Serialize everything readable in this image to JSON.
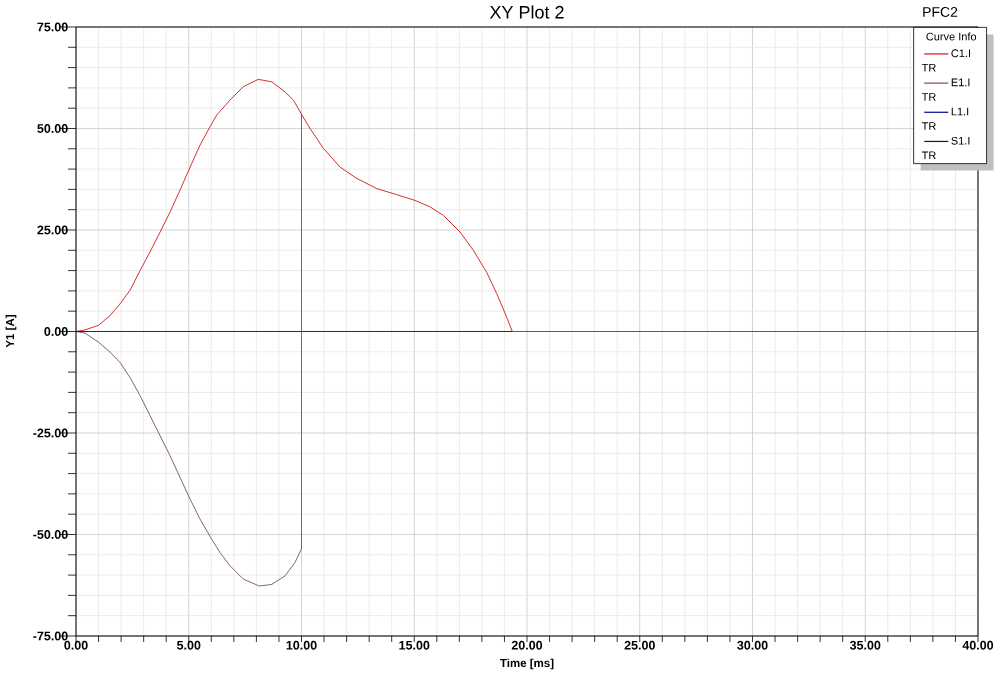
{
  "chart_data": {
    "type": "line",
    "title": "XY Plot 2",
    "xlabel": "Time [ms]",
    "ylabel": "Y1 [A]",
    "legend_title": "Curve Info",
    "annotations": [
      "PFC2",
      "TR",
      "TR",
      "TR",
      "TR"
    ],
    "series": [
      {
        "name": "C1.I",
        "color": "#d01818",
        "x": [
          0,
          0.4,
          0.99,
          1.51,
          1.95,
          2.39,
          2.84,
          3.28,
          3.73,
          4.17,
          4.61,
          5.06,
          5.5,
          5.94,
          6.24,
          6.83,
          7.42,
          8.08,
          8.68,
          9.27,
          9.64,
          10.0,
          10.38,
          10.97,
          11.71,
          12.45,
          13.34,
          14.22,
          15.03,
          15.7,
          16.29,
          17.03,
          17.62,
          18.21,
          18.66,
          19.1,
          19.35,
          40
        ],
        "values": [
          0,
          0.4,
          1.5,
          3.9,
          6.8,
          10.1,
          15.0,
          19.6,
          24.5,
          29.4,
          34.8,
          40.5,
          45.9,
          50.4,
          53.3,
          57.0,
          60.3,
          62.1,
          61.5,
          59.0,
          57.0,
          53.5,
          50.0,
          45.1,
          40.5,
          37.7,
          35.2,
          33.7,
          32.3,
          30.7,
          28.6,
          24.5,
          20.0,
          14.6,
          9.3,
          3.5,
          0,
          0
        ]
      },
      {
        "name": "E1.I",
        "color": "#7a4f66",
        "x": [
          0,
          0.4,
          0.99,
          1.51,
          1.95,
          2.39,
          2.84,
          3.28,
          3.73,
          4.17,
          4.61,
          5.06,
          5.5,
          6.02,
          6.39,
          6.83,
          7.42,
          8.13,
          8.68,
          9.27,
          9.71,
          10.0,
          10.0
        ],
        "values": [
          0,
          -0.4,
          -2.6,
          -5.1,
          -7.6,
          -11.3,
          -15.8,
          -20.7,
          -25.7,
          -30.6,
          -35.9,
          -41.3,
          -46.2,
          -51.2,
          -54.5,
          -57.7,
          -61.0,
          -62.7,
          -62.3,
          -60.2,
          -56.9,
          -53.5,
          53.5
        ]
      },
      {
        "name": "L1.I",
        "color": "#000090"
      },
      {
        "name": "S1.I",
        "color": "#320a32",
        "x": [
          0,
          19.35
        ],
        "values": [
          0,
          0
        ]
      }
    ],
    "xlim": [
      0,
      40
    ],
    "ylim": [
      -75,
      75
    ],
    "xticks": [
      {
        "value": 0,
        "label": "0.00"
      },
      {
        "value": 1,
        "label": null
      },
      {
        "value": 2,
        "label": null
      },
      {
        "value": 3,
        "label": null
      },
      {
        "value": 4,
        "label": null
      },
      {
        "value": 5,
        "label": "5.00"
      },
      {
        "value": 6,
        "label": null
      },
      {
        "value": 7,
        "label": null
      },
      {
        "value": 8,
        "label": null
      },
      {
        "value": 9,
        "label": null
      },
      {
        "value": 10,
        "label": "10.00"
      },
      {
        "value": 11,
        "label": null
      },
      {
        "value": 12,
        "label": null
      },
      {
        "value": 13,
        "label": null
      },
      {
        "value": 14,
        "label": null
      },
      {
        "value": 15,
        "label": "15.00"
      },
      {
        "value": 16,
        "label": null
      },
      {
        "value": 17,
        "label": null
      },
      {
        "value": 18,
        "label": null
      },
      {
        "value": 19,
        "label": null
      },
      {
        "value": 20,
        "label": "20.00"
      },
      {
        "value": 21,
        "label": null
      },
      {
        "value": 22,
        "label": null
      },
      {
        "value": 23,
        "label": null
      },
      {
        "value": 24,
        "label": null
      },
      {
        "value": 25,
        "label": "25.00"
      },
      {
        "value": 26,
        "label": null
      },
      {
        "value": 27,
        "label": null
      },
      {
        "value": 28,
        "label": null
      },
      {
        "value": 29,
        "label": null
      },
      {
        "value": 30,
        "label": "30.00"
      },
      {
        "value": 31,
        "label": null
      },
      {
        "value": 32,
        "label": null
      },
      {
        "value": 33,
        "label": null
      },
      {
        "value": 34,
        "label": null
      },
      {
        "value": 35,
        "label": "35.00"
      },
      {
        "value": 36,
        "label": null
      },
      {
        "value": 37,
        "label": null
      },
      {
        "value": 38,
        "label": null
      },
      {
        "value": 39,
        "label": null
      },
      {
        "value": 40,
        "label": "40.00"
      }
    ],
    "yticks": [
      {
        "value": -75,
        "label": "-75.00"
      },
      {
        "value": -70,
        "label": null
      },
      {
        "value": -65,
        "label": null
      },
      {
        "value": -60,
        "label": null
      },
      {
        "value": -55,
        "label": null
      },
      {
        "value": -50,
        "label": "-50.00"
      },
      {
        "value": -45,
        "label": null
      },
      {
        "value": -40,
        "label": null
      },
      {
        "value": -35,
        "label": null
      },
      {
        "value": -30,
        "label": null
      },
      {
        "value": -25,
        "label": "-25.00"
      },
      {
        "value": -20,
        "label": null
      },
      {
        "value": -15,
        "label": null
      },
      {
        "value": -10,
        "label": null
      },
      {
        "value": -5,
        "label": null
      },
      {
        "value": 0,
        "label": "0.00"
      },
      {
        "value": 5,
        "label": null
      },
      {
        "value": 10,
        "label": null
      },
      {
        "value": 15,
        "label": null
      },
      {
        "value": 20,
        "label": null
      },
      {
        "value": 25,
        "label": "25.00"
      },
      {
        "value": 30,
        "label": null
      },
      {
        "value": 35,
        "label": null
      },
      {
        "value": 40,
        "label": null
      },
      {
        "value": 45,
        "label": null
      },
      {
        "value": 50,
        "label": "50.00"
      },
      {
        "value": 55,
        "label": null
      },
      {
        "value": 60,
        "label": null
      },
      {
        "value": 65,
        "label": null
      },
      {
        "value": 70,
        "label": null
      },
      {
        "value": 75,
        "label": "75.00"
      }
    ],
    "grid": true,
    "legend": "top right"
  }
}
